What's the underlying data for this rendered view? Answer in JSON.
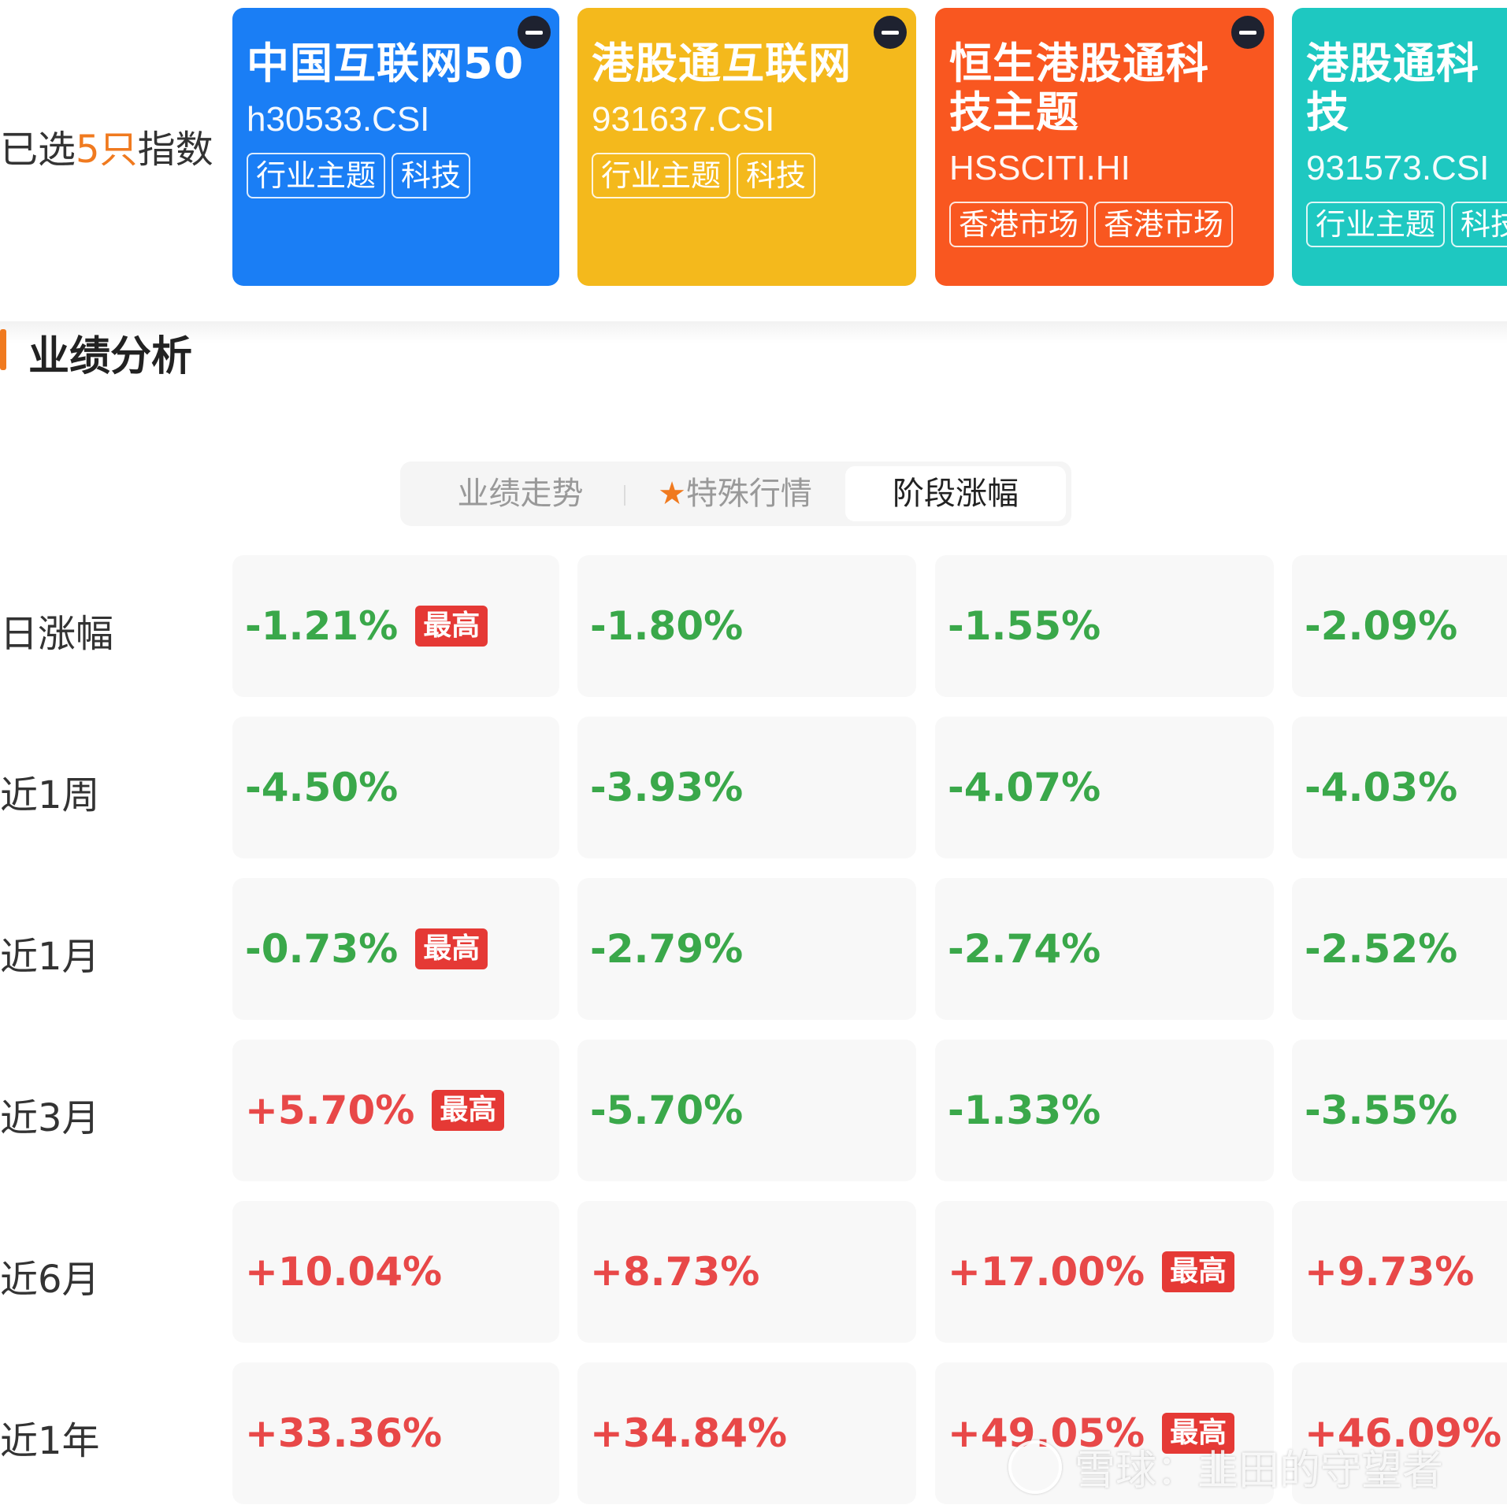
{
  "selection": {
    "prefix": "已选",
    "count": "5只",
    "suffix": "指数"
  },
  "cards": [
    {
      "name": "中国互联网50",
      "code": "h30533.CSI",
      "tags": [
        "行业主题",
        "科技"
      ],
      "color": "#1a7ef5"
    },
    {
      "name": "港股通互联网",
      "code": "931637.CSI",
      "tags": [
        "行业主题",
        "科技"
      ],
      "color": "#f4b91c"
    },
    {
      "name": "恒生港股通科技主题",
      "code": "HSSCITI.HI",
      "tags": [
        "香港市场",
        "香港市场"
      ],
      "color": "#f95720"
    },
    {
      "name": "港股通科技",
      "code": "931573.CSI",
      "tags": [
        "行业主题",
        "科技"
      ],
      "color": "#1ec8c1"
    }
  ],
  "section": {
    "title": "业绩分析"
  },
  "tabs": [
    {
      "label": "业绩走势"
    },
    {
      "star": "★",
      "label": "特殊行情"
    },
    {
      "label": "阶段涨幅",
      "active": true
    }
  ],
  "badge_label": "最高",
  "rows": [
    {
      "label": "日涨幅",
      "values": [
        "-1.21%",
        "-1.80%",
        "-1.55%",
        "-2.09%"
      ],
      "highest": 0
    },
    {
      "label": "近1周",
      "values": [
        "-4.50%",
        "-3.93%",
        "-4.07%",
        "-4.03%"
      ],
      "highest": null
    },
    {
      "label": "近1月",
      "values": [
        "-0.73%",
        "-2.79%",
        "-2.74%",
        "-2.52%"
      ],
      "highest": 0
    },
    {
      "label": "近3月",
      "values": [
        "+5.70%",
        "-5.70%",
        "-1.33%",
        "-3.55%"
      ],
      "highest": 0
    },
    {
      "label": "近6月",
      "values": [
        "+10.04%",
        "+8.73%",
        "+17.00%",
        "+9.73%"
      ],
      "highest": 2
    },
    {
      "label": "近1年",
      "values": [
        "+33.36%",
        "+34.84%",
        "+49.05%",
        "+46.09%"
      ],
      "highest": 2
    }
  ],
  "watermark": "雪球：韭田的守望者"
}
